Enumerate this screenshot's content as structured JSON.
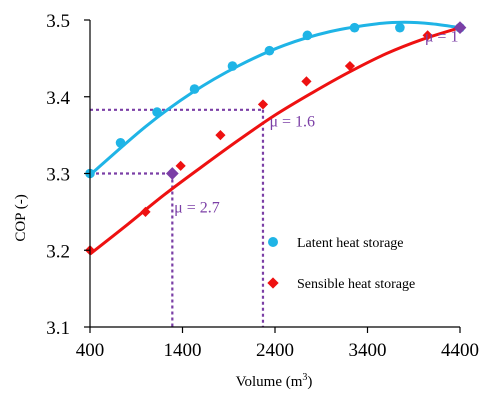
{
  "chart_data": {
    "type": "scatter",
    "title": "",
    "xlabel": "Volume (m",
    "xlabel_sup": "3",
    "xlabel_close": ")",
    "ylabel": "COP (-)",
    "xlim": [
      400,
      4400
    ],
    "ylim": [
      3.1,
      3.5
    ],
    "xticks": [
      400,
      1400,
      2400,
      3400,
      4400
    ],
    "xtick_labels": [
      "400",
      "1400",
      "2400",
      "3400",
      "4400"
    ],
    "yticks": [
      3.1,
      3.2,
      3.3,
      3.4,
      3.5
    ],
    "ytick_labels": [
      "3.1",
      "3.2",
      "3.3",
      "3.4",
      "3.5"
    ],
    "grid": false,
    "legend_position": "bottom-right",
    "series": [
      {
        "name": "Latent heat storage",
        "marker": "circle",
        "color": "#1fb4e6",
        "points": [
          {
            "x": 400,
            "y": 3.3
          },
          {
            "x": 730,
            "y": 3.34
          },
          {
            "x": 1125,
            "y": 3.38
          },
          {
            "x": 1530,
            "y": 3.41
          },
          {
            "x": 1940,
            "y": 3.44
          },
          {
            "x": 2340,
            "y": 3.46
          },
          {
            "x": 2750,
            "y": 3.48
          },
          {
            "x": 3260,
            "y": 3.49
          },
          {
            "x": 3750,
            "y": 3.49
          },
          {
            "x": 4400,
            "y": 3.49
          }
        ],
        "fit": [
          {
            "x": 400,
            "y": 3.298
          },
          {
            "x": 1000,
            "y": 3.361
          },
          {
            "x": 1500,
            "y": 3.405
          },
          {
            "x": 2000,
            "y": 3.44
          },
          {
            "x": 2500,
            "y": 3.467
          },
          {
            "x": 3000,
            "y": 3.485
          },
          {
            "x": 3500,
            "y": 3.495
          },
          {
            "x": 3800,
            "y": 3.497
          },
          {
            "x": 4100,
            "y": 3.495
          },
          {
            "x": 4400,
            "y": 3.49
          }
        ]
      },
      {
        "name": "Sensible heat storage",
        "marker": "diamond",
        "color": "#ee1111",
        "points": [
          {
            "x": 400,
            "y": 3.2
          },
          {
            "x": 1000,
            "y": 3.25
          },
          {
            "x": 1290,
            "y": 3.3
          },
          {
            "x": 1380,
            "y": 3.31
          },
          {
            "x": 1810,
            "y": 3.35
          },
          {
            "x": 2270,
            "y": 3.39
          },
          {
            "x": 2740,
            "y": 3.42
          },
          {
            "x": 3210,
            "y": 3.44
          },
          {
            "x": 4050,
            "y": 3.48
          },
          {
            "x": 4400,
            "y": 3.49
          }
        ],
        "fit": [
          {
            "x": 400,
            "y": 3.195
          },
          {
            "x": 800,
            "y": 3.233
          },
          {
            "x": 1200,
            "y": 3.272
          },
          {
            "x": 1600,
            "y": 3.308
          },
          {
            "x": 2000,
            "y": 3.343
          },
          {
            "x": 2400,
            "y": 3.376
          },
          {
            "x": 2800,
            "y": 3.405
          },
          {
            "x": 3200,
            "y": 3.432
          },
          {
            "x": 3600,
            "y": 3.456
          },
          {
            "x": 4000,
            "y": 3.475
          },
          {
            "x": 4400,
            "y": 3.49
          }
        ]
      }
    ],
    "reference_markers": [
      {
        "x": 1290,
        "y": 3.3,
        "color": "#7b3fa6"
      },
      {
        "x": 4400,
        "y": 3.49,
        "color": "#7b3fa6"
      }
    ],
    "reference_lines": [
      {
        "name": "mu-1.6",
        "y": 3.383,
        "x_from": 400,
        "x_to": 2270,
        "drop_x": 2270
      },
      {
        "name": "mu-2.7",
        "y": 3.3,
        "x_from": 400,
        "x_to": 1290,
        "drop_x": 1290
      }
    ],
    "reference_color": "#7b3fa6",
    "annotations": [
      {
        "text": "μ = 1",
        "x": 4020,
        "y": 3.472,
        "color": "#7b3fa6"
      },
      {
        "text": "μ = 1.6",
        "x": 2340,
        "y": 3.361,
        "color": "#7b3fa6"
      },
      {
        "text": "μ = 2.7",
        "x": 1310,
        "y": 3.249,
        "color": "#7b3fa6"
      }
    ]
  }
}
